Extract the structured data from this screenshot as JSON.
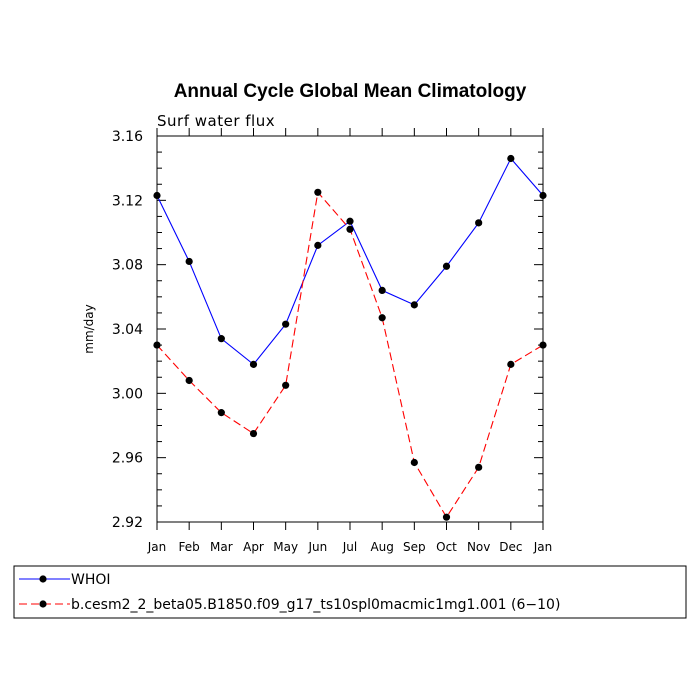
{
  "chart_data": {
    "type": "line",
    "title": "Annual Cycle Global Mean Climatology",
    "subtitle": "Surf water flux",
    "xlabel": "",
    "ylabel": "mm/day",
    "categories": [
      "Jan",
      "Feb",
      "Mar",
      "Apr",
      "May",
      "Jun",
      "Jul",
      "Aug",
      "Sep",
      "Oct",
      "Nov",
      "Dec",
      "Jan"
    ],
    "ylim": [
      2.92,
      3.16
    ],
    "yticks": [
      "2.92",
      "2.96",
      "3.00",
      "3.04",
      "3.08",
      "3.12",
      "3.16"
    ],
    "grid": false,
    "legend_position": "bottom",
    "series": [
      {
        "name": "WHOI",
        "color": "#0000ff",
        "style": "solid",
        "marker": "dot",
        "values": [
          3.123,
          3.082,
          3.034,
          3.018,
          3.043,
          3.092,
          3.107,
          3.064,
          3.055,
          3.079,
          3.106,
          3.146,
          3.123
        ]
      },
      {
        "name": "b.cesm2_2_beta05.B1850.f09_g17_ts10spl0macmic1mg1.001 (6−10)",
        "color": "#ff0000",
        "style": "dashed",
        "marker": "dot",
        "values": [
          3.03,
          3.008,
          2.988,
          2.975,
          3.005,
          3.125,
          3.102,
          3.047,
          2.957,
          2.923,
          2.954,
          3.018,
          3.03
        ]
      }
    ]
  }
}
